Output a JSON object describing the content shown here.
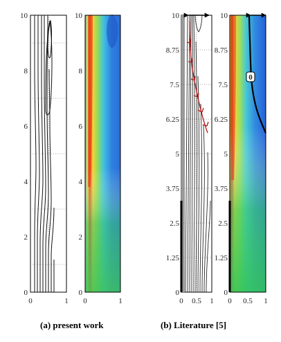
{
  "panels": {
    "left_axis": {
      "yticks": [
        "0",
        "2",
        "4",
        "6",
        "8",
        "10"
      ],
      "xticks": [
        "0",
        "1"
      ]
    },
    "left_color_axis": {
      "yticks": [
        "0",
        "2",
        "4",
        "6",
        "8",
        "10"
      ],
      "xticks": [
        "0",
        "1"
      ]
    },
    "right_contour_axis": {
      "yticks": [
        "0",
        "1.25",
        "2.5",
        "3.75",
        "5",
        "6.25",
        "7.5",
        "8.75",
        "10"
      ],
      "xticks": [
        "0",
        "0.5",
        "1"
      ]
    },
    "right_color_axis": {
      "yticks": [
        "0",
        "1.25",
        "2.5",
        "3.75",
        "5",
        "6.25",
        "7.5",
        "8.75",
        "10"
      ],
      "xticks": [
        "0",
        "0.5",
        "1"
      ]
    },
    "right_marker_label": "0"
  },
  "captions": {
    "left": "(a) present work",
    "right": "(b) Literature [5]"
  },
  "colors": {
    "hot": "#e8321c",
    "mid": "#f3e33c",
    "green": "#52c86a",
    "cyan": "#5ac8e6",
    "cold": "#2466d8",
    "arrow": "#b01818"
  }
}
